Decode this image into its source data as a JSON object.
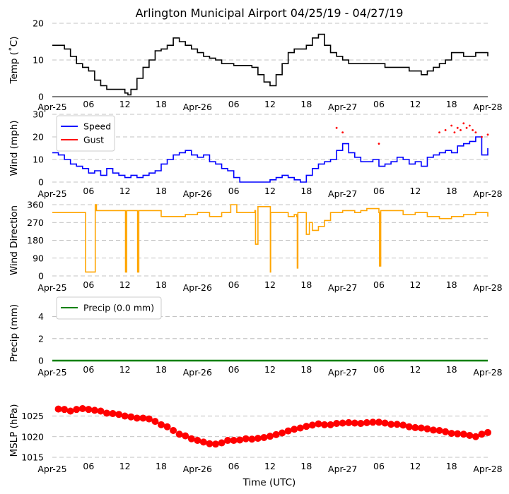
{
  "chart_data": {
    "title": "Arlington Municipal Airport 04/25/19 - 04/27/19",
    "xlabel": "Time (UTC)",
    "x_range_hours": [
      0,
      72
    ],
    "x_ticks": [
      {
        "h": 0,
        "label": "Apr-25"
      },
      {
        "h": 6,
        "label": "06"
      },
      {
        "h": 12,
        "label": "12"
      },
      {
        "h": 18,
        "label": "18"
      },
      {
        "h": 24,
        "label": "Apr-26"
      },
      {
        "h": 30,
        "label": "06"
      },
      {
        "h": 36,
        "label": "12"
      },
      {
        "h": 42,
        "label": "18"
      },
      {
        "h": 48,
        "label": "Apr-27"
      },
      {
        "h": 54,
        "label": "06"
      },
      {
        "h": 60,
        "label": "12"
      },
      {
        "h": 66,
        "label": "18"
      },
      {
        "h": 72,
        "label": "Apr-28"
      }
    ],
    "panels": [
      {
        "id": "temp",
        "type": "line",
        "ylabel": "Temp ($^\\circ$C)",
        "ylabel_display": "Temp (˚C)",
        "ylim": [
          0,
          20
        ],
        "yticks": [
          0,
          10,
          20
        ],
        "color": "#000000",
        "bottom_axis": true,
        "series": [
          {
            "name": "Temp",
            "x": [
              0,
              1,
              2,
              3,
              4,
              5,
              6,
              7,
              8,
              9,
              10,
              11,
              12,
              12.5,
              13,
              14,
              15,
              16,
              17,
              18,
              19,
              20,
              21,
              22,
              23,
              24,
              25,
              26,
              27,
              28,
              29,
              30,
              31,
              32,
              33,
              34,
              35,
              36,
              37,
              38,
              39,
              40,
              41,
              42,
              43,
              44,
              45,
              46,
              47,
              48,
              49,
              50,
              51,
              52,
              53,
              54,
              55,
              56,
              57,
              58,
              59,
              60,
              61,
              62,
              63,
              64,
              65,
              66,
              67,
              68,
              69,
              70,
              71,
              72
            ],
            "y": [
              14,
              14,
              13,
              11,
              9,
              8,
              7,
              4.5,
              3,
              2,
              2,
              2,
              1,
              0.5,
              2,
              5,
              8,
              10,
              12.5,
              13,
              14,
              16,
              15,
              14,
              13,
              12,
              11,
              10.5,
              10,
              9,
              9,
              8.5,
              8.5,
              8.5,
              8,
              6,
              4,
              3,
              6,
              9,
              12,
              13,
              13,
              14,
              16,
              17,
              14,
              12,
              11,
              10,
              9,
              9,
              9,
              9,
              9,
              9,
              8,
              8,
              8,
              8,
              7,
              7,
              6,
              7,
              8,
              9,
              10,
              12,
              12,
              11,
              11,
              12,
              12,
              11
            ]
          }
        ]
      },
      {
        "id": "wind",
        "type": "line",
        "ylabel": "Wind (mph)",
        "ylim": [
          0,
          30
        ],
        "yticks": [
          0,
          10,
          20,
          30
        ],
        "legend": [
          {
            "label": "Speed",
            "color": "#0000ff"
          },
          {
            "label": "Gust",
            "color": "#ff0000"
          }
        ],
        "series": [
          {
            "name": "Speed",
            "color": "#0000ff",
            "x": [
              0,
              1,
              2,
              3,
              4,
              5,
              6,
              7,
              8,
              9,
              10,
              11,
              12,
              13,
              14,
              15,
              16,
              17,
              18,
              19,
              20,
              21,
              22,
              23,
              24,
              25,
              26,
              27,
              28,
              29,
              30,
              31,
              32,
              33,
              34,
              35,
              36,
              37,
              38,
              39,
              40,
              41,
              42,
              43,
              44,
              45,
              46,
              47,
              48,
              49,
              50,
              51,
              52,
              53,
              54,
              55,
              56,
              57,
              58,
              59,
              60,
              61,
              62,
              63,
              64,
              65,
              66,
              67,
              68,
              69,
              70,
              71,
              72
            ],
            "y": [
              13,
              12,
              10,
              8,
              7,
              6,
              4,
              5,
              3,
              6,
              4,
              3,
              2,
              3,
              2,
              3,
              4,
              5,
              8,
              10,
              12,
              13,
              14,
              12,
              11,
              12,
              9,
              8,
              6,
              5,
              2,
              0,
              0,
              0,
              0,
              0,
              1,
              2,
              3,
              2,
              1,
              0,
              3,
              6,
              8,
              9,
              10,
              14,
              17,
              13,
              11,
              9,
              9,
              10,
              7,
              8,
              9,
              11,
              10,
              8,
              9,
              7,
              11,
              12,
              13,
              14,
              13,
              16,
              17,
              18,
              20,
              12,
              15
            ]
          },
          {
            "name": "Gust",
            "color": "#ff0000",
            "markers": "points",
            "x": [
              47,
              48,
              54,
              64,
              65,
              66,
              66.5,
              67,
              67.5,
              68,
              68.5,
              69,
              69.5,
              70,
              71,
              72
            ],
            "y": [
              24,
              22,
              17,
              22,
              23,
              25,
              22,
              24,
              23,
              26,
              24,
              25,
              23,
              22,
              20,
              21
            ]
          }
        ]
      },
      {
        "id": "wdir",
        "type": "line",
        "ylabel": "Wind Direction",
        "ylim": [
          0,
          360
        ],
        "yticks": [
          0,
          90,
          180,
          270,
          360
        ],
        "color": "#ffa500",
        "series": [
          {
            "name": "Direction",
            "x": [
              0,
              5.4,
              5.5,
              7,
              7.1,
              7.3,
              12,
              12.1,
              12.3,
              14,
              14.1,
              14.3,
              16,
              18,
              22,
              24,
              26,
              28,
              29.4,
              29.5,
              30,
              30.5,
              32,
              33.5,
              33.6,
              34,
              36,
              36.05,
              36.1,
              39,
              40,
              40.4,
              40.5,
              40.6,
              42,
              42.5,
              43,
              44,
              45,
              46,
              48,
              50,
              51,
              52,
              54,
              54.1,
              54.3,
              56,
              58,
              60,
              62,
              64,
              66,
              68,
              70,
              72
            ],
            "y": [
              320,
              320,
              20,
              20,
              360,
              330,
              330,
              20,
              330,
              330,
              20,
              330,
              330,
              300,
              310,
              320,
              300,
              320,
              320,
              360,
              360,
              320,
              320,
              330,
              160,
              350,
              350,
              20,
              320,
              300,
              310,
              300,
              40,
              320,
              210,
              270,
              230,
              250,
              280,
              320,
              330,
              320,
              330,
              340,
              320,
              50,
              330,
              330,
              310,
              320,
              300,
              290,
              300,
              310,
              320,
              300
            ]
          }
        ]
      },
      {
        "id": "precip",
        "type": "line",
        "ylabel": "Precip (mm)",
        "ylim": [
          0,
          5
        ],
        "yticks": [
          0,
          2,
          4
        ],
        "color": "#008000",
        "legend": [
          {
            "label": "Precip (0.0 mm)",
            "color": "#008000"
          }
        ],
        "series": [
          {
            "name": "Precip (0.0 mm)",
            "x": [
              0,
              72
            ],
            "y": [
              0,
              0
            ]
          }
        ]
      },
      {
        "id": "mslp",
        "type": "scatter",
        "ylabel": "MSLP (hPa)",
        "ylim": [
          1015,
          1028
        ],
        "yticks": [
          1015,
          1020,
          1025
        ],
        "color": "#ff0000",
        "series": [
          {
            "name": "MSLP",
            "x": [
              1,
              2,
              3,
              4,
              5,
              6,
              7,
              8,
              9,
              10,
              11,
              12,
              13,
              14,
              15,
              16,
              17,
              18,
              19,
              20,
              21,
              22,
              23,
              24,
              25,
              26,
              27,
              28,
              29,
              30,
              31,
              32,
              33,
              34,
              35,
              36,
              37,
              38,
              39,
              40,
              41,
              42,
              43,
              44,
              45,
              46,
              47,
              48,
              49,
              50,
              51,
              52,
              53,
              54,
              55,
              56,
              57,
              58,
              59,
              60,
              61,
              62,
              63,
              64,
              65,
              66,
              67,
              68,
              69,
              70,
              71,
              72
            ],
            "y": [
              1026.7,
              1026.6,
              1026.2,
              1026.6,
              1026.8,
              1026.6,
              1026.4,
              1026.2,
              1025.7,
              1025.6,
              1025.4,
              1025.0,
              1024.8,
              1024.5,
              1024.5,
              1024.3,
              1023.7,
              1022.9,
              1022.4,
              1021.5,
              1020.6,
              1020.2,
              1019.5,
              1019.1,
              1018.7,
              1018.3,
              1018.2,
              1018.5,
              1019.1,
              1019.1,
              1019.2,
              1019.5,
              1019.4,
              1019.6,
              1019.8,
              1020.1,
              1020.5,
              1020.9,
              1021.4,
              1021.8,
              1022.1,
              1022.5,
              1022.8,
              1023.1,
              1022.9,
              1022.9,
              1023.2,
              1023.3,
              1023.4,
              1023.3,
              1023.2,
              1023.4,
              1023.5,
              1023.5,
              1023.3,
              1023.0,
              1023.0,
              1022.8,
              1022.4,
              1022.2,
              1022.1,
              1021.9,
              1021.6,
              1021.5,
              1021.2,
              1020.8,
              1020.7,
              1020.6,
              1020.3,
              1020.0,
              1020.6,
              1021.0
            ]
          }
        ]
      }
    ]
  }
}
